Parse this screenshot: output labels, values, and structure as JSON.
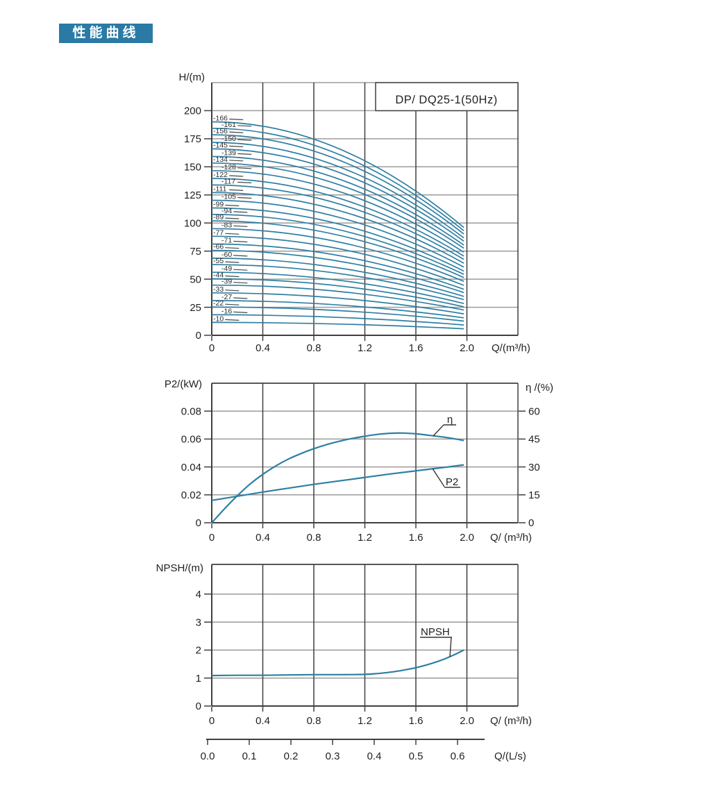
{
  "page": {
    "badge": "性能曲线"
  },
  "colors": {
    "badge_bg": "#2a7aa5",
    "curve": "#2e7fa3",
    "grid_dark": "#3f3f3f",
    "grid_light": "#9b9b9b",
    "text": "#1f1f1f"
  },
  "chart_data": [
    {
      "id": "head-flow",
      "type": "line",
      "title": "DP/ DQ25-1(50Hz)",
      "ylabel": "H/(m)",
      "xlabel": "Q/(m³/h)",
      "xlim": [
        0,
        2.4
      ],
      "ylim": [
        0,
        225
      ],
      "grid": true,
      "x_ticks": [
        "0",
        "0.4",
        "0.8",
        "1.2",
        "1.6",
        "2.0"
      ],
      "y_ticks": [
        "0",
        "25",
        "50",
        "75",
        "100",
        "125",
        "150",
        "175",
        "200"
      ],
      "flow_range_m3h": [
        0,
        1.98
      ],
      "curve_model": "H(Q) = H0 - (H0 - Hend) * (Q/1.98)^2",
      "series": [
        {
          "label": "-166",
          "H0": 190.1,
          "Hend": 96.0
        },
        {
          "label": "-161",
          "H0": 184.3,
          "Hend": 93.1
        },
        {
          "label": "-156",
          "H0": 178.6,
          "Hend": 90.2
        },
        {
          "label": "-150",
          "H0": 171.8,
          "Hend": 86.7
        },
        {
          "label": "-145",
          "H0": 166.0,
          "Hend": 83.8
        },
        {
          "label": "-139",
          "H0": 159.2,
          "Hend": 80.3
        },
        {
          "label": "-134",
          "H0": 153.4,
          "Hend": 77.5
        },
        {
          "label": "-128",
          "H0": 146.6,
          "Hend": 74.0
        },
        {
          "label": "-122",
          "H0": 139.7,
          "Hend": 70.5
        },
        {
          "label": "-117",
          "H0": 133.9,
          "Hend": 67.6
        },
        {
          "label": "-111",
          "H0": 127.1,
          "Hend": 64.2
        },
        {
          "label": "-105",
          "H0": 120.2,
          "Hend": 60.7
        },
        {
          "label": "-99",
          "H0": 113.4,
          "Hend": 57.2
        },
        {
          "label": "-94",
          "H0": 107.6,
          "Hend": 54.3
        },
        {
          "label": "-89",
          "H0": 101.9,
          "Hend": 51.4
        },
        {
          "label": "-83",
          "H0": 95.0,
          "Hend": 48.0
        },
        {
          "label": "-77",
          "H0": 88.2,
          "Hend": 44.5
        },
        {
          "label": "-71",
          "H0": 81.3,
          "Hend": 41.0
        },
        {
          "label": "-66",
          "H0": 75.6,
          "Hend": 38.1
        },
        {
          "label": "-60",
          "H0": 68.7,
          "Hend": 34.7
        },
        {
          "label": "-55",
          "H0": 63.0,
          "Hend": 31.8
        },
        {
          "label": "-49",
          "H0": 56.1,
          "Hend": 28.3
        },
        {
          "label": "-44",
          "H0": 50.4,
          "Hend": 25.4
        },
        {
          "label": "-39",
          "H0": 44.7,
          "Hend": 22.5
        },
        {
          "label": "-33",
          "H0": 37.8,
          "Hend": 19.1
        },
        {
          "label": "-27",
          "H0": 30.9,
          "Hend": 15.6
        },
        {
          "label": "-22",
          "H0": 25.2,
          "Hend": 12.7
        },
        {
          "label": "-16",
          "H0": 18.3,
          "Hend": 9.2
        },
        {
          "label": "-10",
          "H0": 11.5,
          "Hend": 5.8
        }
      ]
    },
    {
      "id": "power-efficiency",
      "type": "line",
      "ylabel_left": "P2/(kW)",
      "ylabel_right": "η /(%)",
      "xlabel": "Q/ (m³/h)",
      "xlim": [
        0,
        2.4
      ],
      "ylim_left": [
        0,
        0.1
      ],
      "ylim_right": [
        0,
        75
      ],
      "grid": true,
      "x_ticks": [
        "0",
        "0.4",
        "0.8",
        "1.2",
        "1.6",
        "2.0"
      ],
      "y_ticks_left": [
        "0",
        "0.02",
        "0.04",
        "0.06",
        "0.08"
      ],
      "y_ticks_right": [
        "0",
        "15",
        "30",
        "45",
        "60"
      ],
      "series": [
        {
          "name": "η",
          "axis": "right",
          "x": [
            0,
            0.1,
            0.2,
            0.3,
            0.4,
            0.5,
            0.6,
            0.7,
            0.8,
            0.9,
            1.0,
            1.1,
            1.2,
            1.3,
            1.4,
            1.5,
            1.6,
            1.7,
            1.8,
            1.9,
            1.976
          ],
          "y": [
            0,
            7.5,
            14.5,
            20.8,
            26,
            30.5,
            34.2,
            37.2,
            39.8,
            42,
            43.8,
            45.3,
            46.5,
            47.5,
            48.1,
            48.2,
            47.8,
            47,
            46.2,
            45.2,
            44.2
          ]
        },
        {
          "name": "P2",
          "axis": "left",
          "x": [
            0,
            0.2,
            0.4,
            0.6,
            0.8,
            1.0,
            1.2,
            1.4,
            1.6,
            1.8,
            1.976
          ],
          "y": [
            0.016,
            0.019,
            0.022,
            0.0248,
            0.0275,
            0.03,
            0.0325,
            0.035,
            0.0372,
            0.0394,
            0.0415
          ]
        }
      ]
    },
    {
      "id": "npsh",
      "type": "line",
      "ylabel": "NPSH/(m)",
      "xlabel": "Q/ (m³/h)",
      "xlim": [
        0,
        2.4
      ],
      "ylim": [
        0,
        5.06
      ],
      "grid": true,
      "x_ticks": [
        "0",
        "0.4",
        "0.8",
        "1.2",
        "1.6",
        "2.0"
      ],
      "y_ticks": [
        "0",
        "1",
        "2",
        "3",
        "4"
      ],
      "series": [
        {
          "name": "NPSH",
          "x": [
            0,
            0.2,
            0.4,
            0.6,
            0.8,
            1.0,
            1.2,
            1.3,
            1.4,
            1.5,
            1.6,
            1.7,
            1.8,
            1.9,
            1.976
          ],
          "y": [
            1.09,
            1.1,
            1.1,
            1.11,
            1.12,
            1.12,
            1.13,
            1.16,
            1.21,
            1.28,
            1.37,
            1.49,
            1.64,
            1.83,
            2.0
          ]
        }
      ]
    }
  ],
  "secondary_axis": {
    "label": "Q/(L/s)",
    "ticks": [
      "0.0",
      "0.1",
      "0.2",
      "0.3",
      "0.4",
      "0.5",
      "0.6"
    ]
  }
}
